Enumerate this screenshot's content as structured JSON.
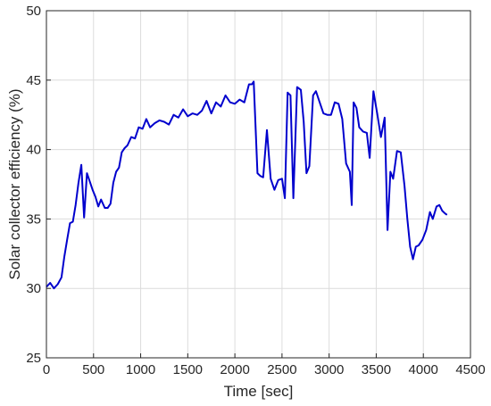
{
  "chart_data": {
    "type": "line",
    "xlabel": "Time [sec]",
    "ylabel": "Solar collector efficiency (%)",
    "xlim": [
      0,
      4500
    ],
    "ylim": [
      25,
      50
    ],
    "xticks": [
      0,
      500,
      1000,
      1500,
      2000,
      2500,
      3000,
      3500,
      4000,
      4500
    ],
    "yticks": [
      25,
      30,
      35,
      40,
      45,
      50
    ],
    "grid": true,
    "line_color": "#0000cd",
    "series": [
      {
        "x": [
          0,
          40,
          80,
          120,
          160,
          190,
          220,
          250,
          280,
          310,
          340,
          370,
          400,
          430,
          460,
          490,
          520,
          550,
          580,
          620,
          650,
          680,
          710,
          740,
          770,
          800,
          830,
          860,
          900,
          940,
          980,
          1020,
          1060,
          1100,
          1150,
          1200,
          1250,
          1300,
          1350,
          1400,
          1450,
          1500,
          1550,
          1600,
          1650,
          1700,
          1750,
          1800,
          1850,
          1900,
          1950,
          2000,
          2050,
          2100,
          2150,
          2180,
          2200,
          2240,
          2270,
          2300,
          2340,
          2380,
          2420,
          2460,
          2500,
          2530,
          2560,
          2590,
          2620,
          2660,
          2700,
          2730,
          2760,
          2790,
          2830,
          2860,
          2900,
          2940,
          2980,
          3020,
          3060,
          3100,
          3140,
          3180,
          3220,
          3240,
          3260,
          3290,
          3320,
          3360,
          3400,
          3430,
          3470,
          3510,
          3550,
          3590,
          3620,
          3650,
          3680,
          3720,
          3760,
          3800,
          3830,
          3860,
          3890,
          3920,
          3950,
          3990,
          4030,
          4070,
          4100,
          4140,
          4170,
          4200,
          4230,
          4250
        ],
        "y": [
          30.1,
          30.4,
          30.0,
          30.3,
          30.8,
          32.3,
          33.5,
          34.7,
          34.8,
          36.0,
          37.6,
          38.9,
          35.1,
          38.3,
          37.7,
          37.1,
          36.6,
          35.9,
          36.4,
          35.8,
          35.8,
          36.1,
          37.6,
          38.4,
          38.7,
          39.8,
          40.1,
          40.3,
          40.9,
          40.8,
          41.6,
          41.5,
          42.2,
          41.6,
          41.9,
          42.1,
          42.0,
          41.8,
          42.5,
          42.3,
          42.9,
          42.4,
          42.6,
          42.5,
          42.8,
          43.5,
          42.6,
          43.4,
          43.1,
          43.9,
          43.4,
          43.3,
          43.6,
          43.4,
          44.7,
          44.7,
          44.9,
          38.3,
          38.1,
          38.0,
          41.4,
          37.9,
          37.1,
          37.8,
          37.9,
          36.5,
          44.1,
          43.9,
          36.5,
          44.5,
          44.3,
          42.0,
          38.3,
          38.8,
          43.9,
          44.2,
          43.4,
          42.6,
          42.5,
          42.5,
          43.4,
          43.3,
          42.2,
          39.0,
          38.4,
          36.0,
          43.4,
          43.0,
          41.6,
          41.3,
          41.2,
          39.4,
          44.2,
          42.6,
          40.9,
          42.3,
          34.2,
          38.4,
          37.9,
          39.9,
          39.8,
          37.4,
          35.0,
          33.0,
          32.1,
          33.0,
          33.1,
          33.5,
          34.2,
          35.5,
          35.0,
          35.9,
          36.0,
          35.6,
          35.4,
          35.3
        ]
      }
    ]
  }
}
